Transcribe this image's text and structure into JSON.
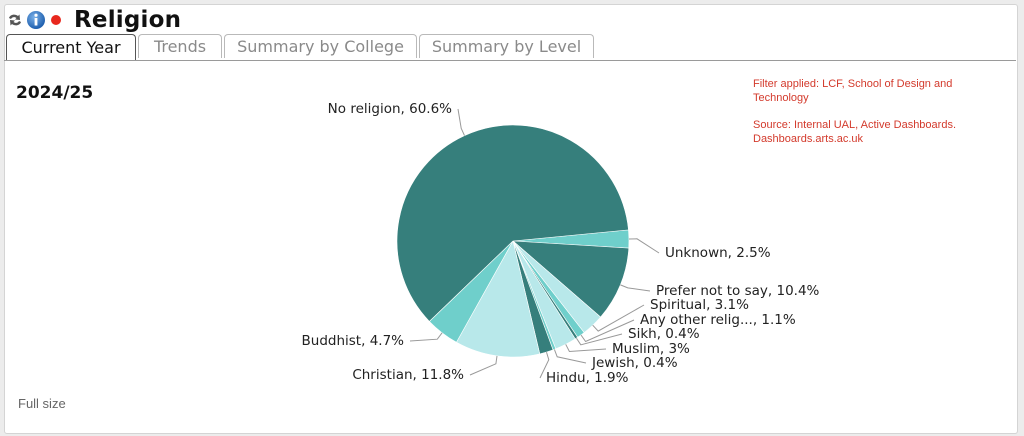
{
  "header": {
    "title": "Religion",
    "icons": [
      "refresh-icon",
      "info-icon",
      "status-dot-icon"
    ]
  },
  "tabs": [
    {
      "label": "Current Year",
      "active": true
    },
    {
      "label": "Trends",
      "active": false
    },
    {
      "label": "Summary by College",
      "active": false
    },
    {
      "label": "Summary by Level",
      "active": false
    }
  ],
  "year_label": "2024/25",
  "notes": {
    "filter": "Filter applied: LCF, School of Design and Technology",
    "source": "Source: Internal UAL, Active Dashboards. Dashboards.arts.ac.uk"
  },
  "footer": {
    "full_size": "Full size"
  },
  "colors": {
    "accent_red": "#d33a2c",
    "dark_teal": "#367f7c",
    "mid_teal": "#6fcfcb",
    "light_teal": "#b8e8ea"
  },
  "chart_data": {
    "type": "pie",
    "slices": [
      {
        "label": "Unknown, 2.5%",
        "value": 2.5,
        "color": "#6fcfcb"
      },
      {
        "label": "Prefer not to say, 10.4%",
        "value": 10.4,
        "color": "#367f7c"
      },
      {
        "label": "Spiritual, 3.1%",
        "value": 3.1,
        "color": "#b8e8ea"
      },
      {
        "label": "Any other relig..., 1.1%",
        "value": 1.1,
        "color": "#6fcfcb"
      },
      {
        "label": "Sikh, 0.4%",
        "value": 0.4,
        "color": "#367f7c"
      },
      {
        "label": "Muslim, 3%",
        "value": 3,
        "color": "#b8e8ea"
      },
      {
        "label": "Jewish, 0.4%",
        "value": 0.4,
        "color": "#6fcfcb"
      },
      {
        "label": "Hindu, 1.9%",
        "value": 1.9,
        "color": "#367f7c"
      },
      {
        "label": "Christian, 11.8%",
        "value": 11.8,
        "color": "#b8e8ea"
      },
      {
        "label": "Buddhist, 4.7%",
        "value": 4.7,
        "color": "#6fcfcb"
      },
      {
        "label": "No religion, 60.6%",
        "value": 60.6,
        "color": "#367f7c"
      }
    ]
  }
}
